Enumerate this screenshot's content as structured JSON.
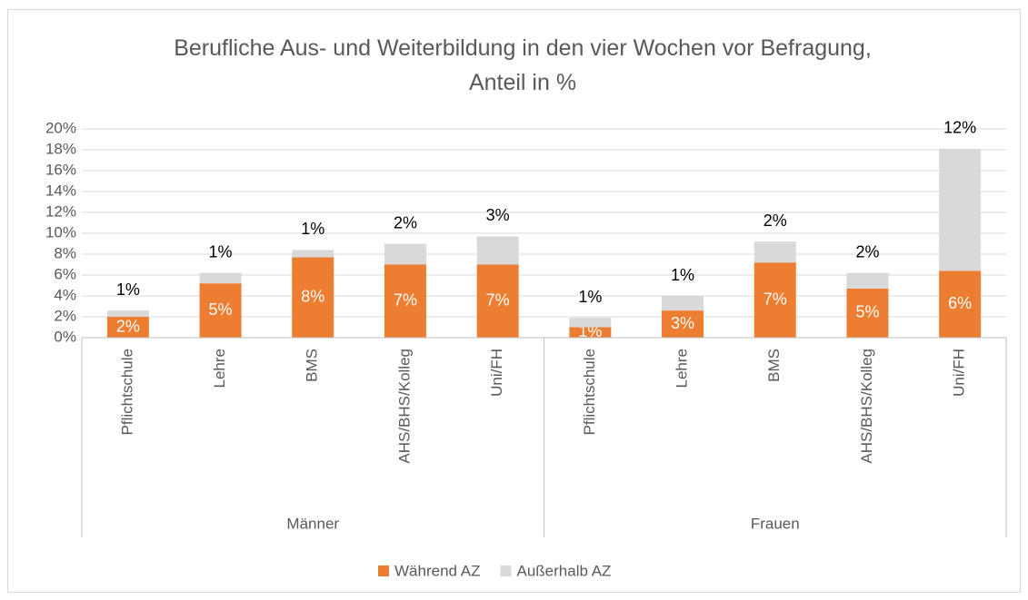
{
  "chart_data": {
    "type": "stacked_bar",
    "title": "Berufliche Aus- und Weiterbildung in den vier Wochen vor Befragung, Anteil in %",
    "groups": [
      "Männer",
      "Frauen"
    ],
    "categories": [
      "Pflichtschule",
      "Lehre",
      "BMS",
      "AHS/BHS/Kolleg",
      "Uni/FH",
      "Pflichtschule",
      "Lehre",
      "BMS",
      "AHS/BHS/Kolleg",
      "Uni/FH"
    ],
    "series": [
      {
        "name": "Während AZ",
        "color": "#ed7d31",
        "values": [
          2.0,
          5.2,
          7.7,
          7.0,
          7.0,
          1.0,
          2.6,
          7.2,
          4.7,
          6.4
        ],
        "value_labels": [
          "2%",
          "5%",
          "8%",
          "7%",
          "7%",
          "1%",
          "3%",
          "7%",
          "5%",
          "6%"
        ]
      },
      {
        "name": "Außerhalb AZ",
        "color": "#d9d9d9",
        "values": [
          0.6,
          1.0,
          0.7,
          2.0,
          2.7,
          0.9,
          1.4,
          2.0,
          1.5,
          11.7
        ],
        "value_labels": [
          "1%",
          "1%",
          "1%",
          "2%",
          "3%",
          "1%",
          "1%",
          "2%",
          "2%",
          "12%"
        ]
      }
    ],
    "ylim": [
      0,
      20
    ],
    "yticks": [
      {
        "value": 0,
        "label": "0%"
      },
      {
        "value": 2,
        "label": "2%"
      },
      {
        "value": 4,
        "label": "4%"
      },
      {
        "value": 6,
        "label": "6%"
      },
      {
        "value": 8,
        "label": "8%"
      },
      {
        "value": 10,
        "label": "10%"
      },
      {
        "value": 12,
        "label": "12%"
      },
      {
        "value": 14,
        "label": "14%"
      },
      {
        "value": 16,
        "label": "16%"
      },
      {
        "value": 18,
        "label": "18%"
      },
      {
        "value": 20,
        "label": "20%"
      }
    ],
    "grid": true,
    "legend": "bottom"
  }
}
